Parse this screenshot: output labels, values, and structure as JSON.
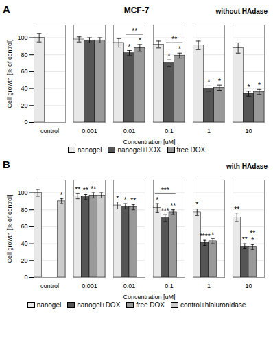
{
  "chart_data": [
    {
      "type": "bar",
      "panel_label": "A",
      "title": "MCF-7",
      "subtitle": "without HAdase",
      "xlabel": "Concentration [uM]",
      "ylabel": "Cell growth [% of control]",
      "categories": [
        "control",
        "0.001",
        "0.01",
        "0.1",
        "1",
        "10"
      ],
      "series": [
        {
          "name": "nanogel",
          "color": "#e8e8e8",
          "values": [
            100,
            98,
            94,
            92,
            91,
            88
          ],
          "errors": [
            5,
            3,
            5,
            4,
            5,
            6
          ]
        },
        {
          "name": "nanogel+DOX",
          "color": "#555555",
          "values": [
            null,
            97,
            82,
            70,
            40,
            34
          ],
          "errors": [
            null,
            3,
            3,
            4,
            3,
            3
          ]
        },
        {
          "name": "free DOX",
          "color": "#999999",
          "values": [
            null,
            97,
            88,
            79,
            41,
            36
          ],
          "errors": [
            null,
            3,
            4,
            3,
            3,
            3
          ]
        }
      ],
      "ylim": [
        0,
        115
      ],
      "yticks": [
        0,
        20,
        40,
        60,
        80,
        100
      ],
      "grid": true,
      "legend": "bottom",
      "annotations": [
        {
          "text": "*",
          "category": "0.01",
          "series": "nanogel+DOX"
        },
        {
          "text": "*",
          "category": "0.1",
          "series": "nanogel+DOX"
        },
        {
          "text": "*",
          "category": "1",
          "series": "nanogel+DOX"
        },
        {
          "text": "*",
          "category": "10",
          "series": "nanogel+DOX"
        },
        {
          "text": "*",
          "category": "0.01",
          "series": "free DOX"
        },
        {
          "text": "*",
          "category": "0.1",
          "series": "free DOX"
        },
        {
          "text": "*",
          "category": "1",
          "series": "free DOX"
        },
        {
          "text": "*",
          "category": "10",
          "series": "free DOX"
        },
        {
          "text": "**",
          "category": "0.01",
          "series": [
            "nanogel+DOX",
            "free DOX"
          ]
        },
        {
          "text": "**",
          "category": "0.1",
          "series": [
            "nanogel+DOX",
            "free DOX"
          ]
        }
      ]
    },
    {
      "type": "bar",
      "panel_label": "B",
      "subtitle": "with HAdase",
      "xlabel": "Concentration [uM]",
      "ylabel": "Cell growth [% of control]",
      "categories": [
        "control",
        "0.001",
        "0.01",
        "0.1",
        "1",
        "10"
      ],
      "series": [
        {
          "name": "nanogel",
          "color": "#e8e8e8",
          "values": [
            100,
            96,
            85,
            82,
            77,
            71
          ],
          "errors": [
            4,
            3,
            4,
            5,
            4,
            5
          ]
        },
        {
          "name": "nanogel+DOX",
          "color": "#555555",
          "values": [
            null,
            95,
            84,
            70,
            41,
            37
          ],
          "errors": [
            null,
            3,
            3,
            4,
            3,
            3
          ]
        },
        {
          "name": "free DOX",
          "color": "#999999",
          "values": [
            null,
            97,
            83,
            77,
            43,
            36
          ],
          "errors": [
            null,
            3,
            3,
            3,
            3,
            3
          ]
        },
        {
          "name": "control+hialuronidase",
          "color": "#cccccc",
          "values": [
            90,
            97,
            null,
            null,
            null,
            null
          ],
          "errors": [
            3,
            3,
            null,
            null,
            null,
            null
          ]
        }
      ],
      "ylim": [
        0,
        115
      ],
      "yticks": [
        0,
        20,
        40,
        60,
        80,
        100
      ],
      "grid": true,
      "legend": "bottom",
      "annotations": [
        {
          "text": "*",
          "category": "control",
          "series": "control+hialuronidase"
        },
        {
          "text": "**",
          "category": "0.001",
          "series": "nanogel"
        },
        {
          "text": "**",
          "category": "0.001",
          "series": "nanogel+DOX"
        },
        {
          "text": "**",
          "category": "0.001",
          "series": "free DOX"
        },
        {
          "text": "*",
          "category": "0.01",
          "series": "nanogel"
        },
        {
          "text": "*",
          "category": "0.01",
          "series": "nanogel+DOX"
        },
        {
          "text": "**",
          "category": "0.01",
          "series": "free DOX"
        },
        {
          "text": "***",
          "category": "0.1",
          "series": [
            "nanogel",
            "free DOX"
          ]
        },
        {
          "text": "*",
          "category": "0.1",
          "series": "nanogel"
        },
        {
          "text": "***",
          "category": "0.1",
          "series": "nanogel+DOX"
        },
        {
          "text": "**",
          "category": "0.1",
          "series": "free DOX"
        },
        {
          "text": "*",
          "category": "1",
          "series": "nanogel"
        },
        {
          "text": "****",
          "category": "1",
          "series": "nanogel+DOX"
        },
        {
          "text": "*",
          "category": "1",
          "series": "free DOX"
        },
        {
          "text": "**",
          "category": "10",
          "series": "nanogel"
        },
        {
          "text": "**",
          "category": "10",
          "series": "nanogel+DOX"
        },
        {
          "text": "*",
          "category": "10",
          "series": "free DOX"
        },
        {
          "text": "**",
          "category": "10",
          "series": "free DOX"
        }
      ]
    }
  ]
}
